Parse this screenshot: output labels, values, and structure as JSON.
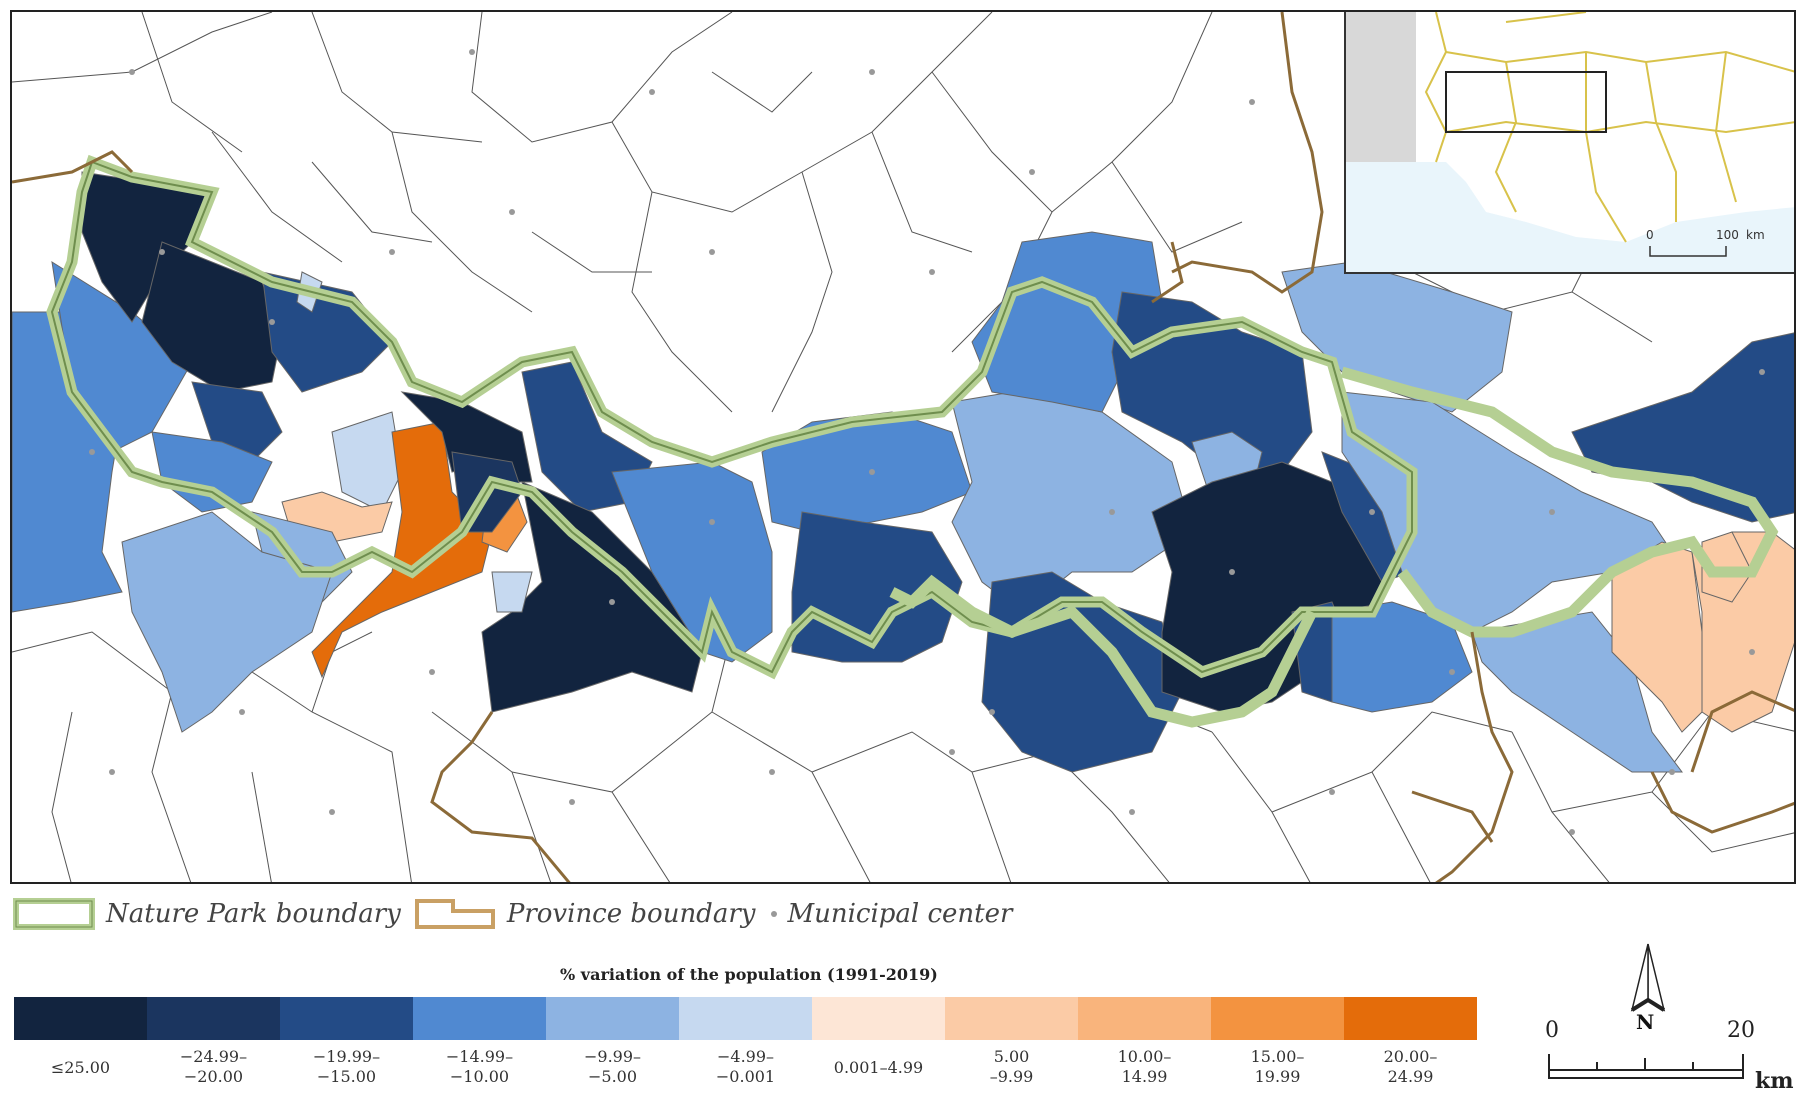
{
  "legend": {
    "nature_park": "Nature Park boundary",
    "province": "Province boundary",
    "municipal": "Municipal  center",
    "title": "% variation of the population (1991-2019)"
  },
  "classes": [
    {
      "label": "≤25.00",
      "color": "#12243f"
    },
    {
      "label": "−24.99–\n−20.00",
      "color": "#1b355f"
    },
    {
      "label": "−19.99–\n−15.00",
      "color": "#234b86"
    },
    {
      "label": "−14.99–\n−10.00",
      "color": "#5089d1"
    },
    {
      "label": "−9.99–\n−5.00",
      "color": "#8db3e2"
    },
    {
      "label": "−4.99–\n−0.001",
      "color": "#c6d9f0"
    },
    {
      "label": "0.001–4.99",
      "color": "#fde6d6"
    },
    {
      "label": "5.00\n–9.99",
      "color": "#fbcba6"
    },
    {
      "label": "10.00–\n14.99",
      "color": "#f9b47c"
    },
    {
      "label": "15.00–\n19.99",
      "color": "#f39340"
    },
    {
      "label": "20.00–\n24.99",
      "color": "#e46c0a"
    }
  ],
  "colors": {
    "park_boundary": "#b5cf93",
    "park_boundary_edge": "#6f8e4e",
    "province_boundary": "#8b6a38",
    "inset_land": "#ffffff",
    "inset_sea": "#e9f5fb",
    "inset_gray": "#d8d8d8",
    "inset_lines": "#d8c24a"
  },
  "inset": {
    "scale_start": "0",
    "scale_end": "100",
    "scale_unit": "km"
  },
  "scale": {
    "start": "0",
    "end": "20",
    "unit": "km"
  },
  "north": "N"
}
